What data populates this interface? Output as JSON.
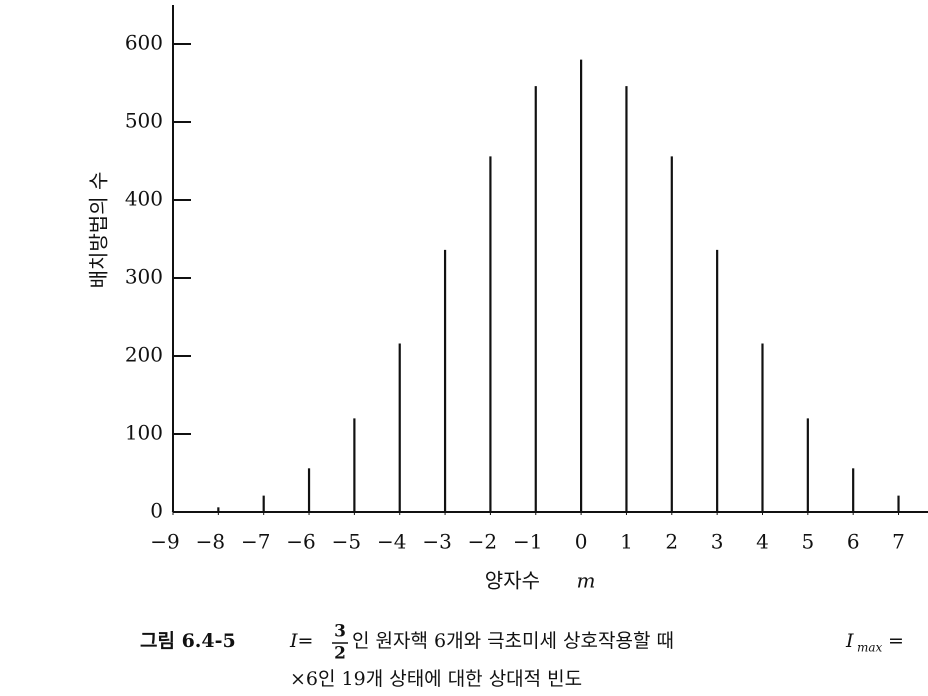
{
  "chart_data": {
    "type": "stem",
    "y_label": "배치방법의 수",
    "x_label": "양자수",
    "x_label_symbol": "m",
    "x": [
      -9,
      -8,
      -7,
      -6,
      -5,
      -4,
      -3,
      -2,
      -1,
      0,
      1,
      2,
      3,
      4,
      5,
      6,
      7
    ],
    "values": [
      1,
      6,
      21,
      56,
      120,
      216,
      336,
      456,
      546,
      580,
      546,
      456,
      336,
      216,
      120,
      56,
      21
    ],
    "color": "#111111",
    "xlim": [
      -9,
      7.65
    ],
    "ylim": [
      0,
      650
    ],
    "xticks": [
      {
        "value": -9,
        "label": "−9"
      },
      {
        "value": -8,
        "label": "−8"
      },
      {
        "value": -7,
        "label": "−7"
      },
      {
        "value": -6,
        "label": "−6"
      },
      {
        "value": -5,
        "label": "−5"
      },
      {
        "value": -4,
        "label": "−4"
      },
      {
        "value": -3,
        "label": "−3"
      },
      {
        "value": -2,
        "label": "−2"
      },
      {
        "value": -1,
        "label": "−1"
      },
      0,
      1,
      2,
      3,
      4,
      5,
      6,
      7
    ],
    "yticks": [
      0,
      100,
      200,
      300,
      400,
      500,
      600
    ],
    "caption": {
      "label": "그림 6.4-5",
      "symbol": "I=",
      "num": "3",
      "den": "2",
      "text1": "인 원자핵 6개와 극초미세 상호작용할 때",
      "symbol2": "I",
      "sub": "max",
      "eq": "=",
      "line2": "×6인 19개 상태에 대한 상대적 빈도"
    }
  }
}
